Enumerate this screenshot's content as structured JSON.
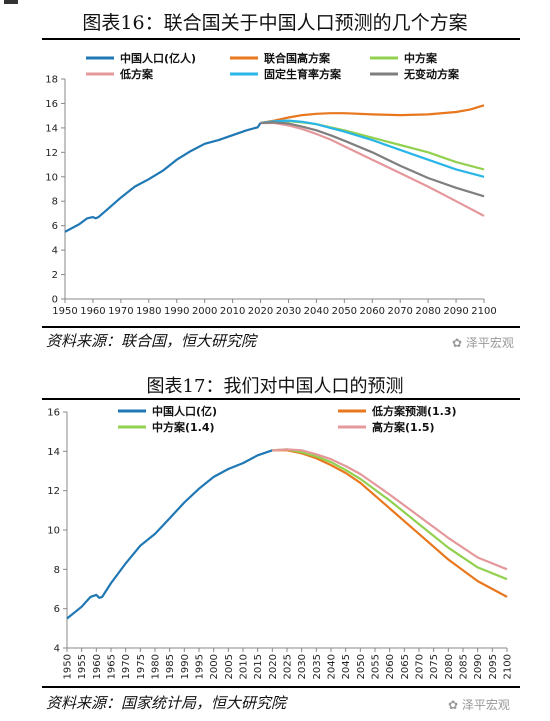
{
  "chart_data": [
    {
      "type": "line",
      "title": "图表16：联合国关于中国人口预测的几个方案",
      "xlim": [
        1950,
        2100
      ],
      "ylim": [
        0,
        18
      ],
      "xticks": [
        1950,
        1960,
        1970,
        1980,
        1990,
        2000,
        2010,
        2020,
        2030,
        2040,
        2050,
        2060,
        2070,
        2080,
        2090,
        2100
      ],
      "yticks": [
        0,
        2,
        4,
        6,
        8,
        10,
        12,
        14,
        16,
        18
      ],
      "grid": false,
      "legend_position": "top",
      "series": [
        {
          "name": "中国人口(亿人)",
          "color": "#1f77b4",
          "x": [
            1950,
            1955,
            1958,
            1960,
            1961,
            1962,
            1965,
            1970,
            1975,
            1980,
            1985,
            1990,
            1995,
            2000,
            2005,
            2010,
            2015,
            2019,
            2020
          ],
          "y": [
            5.5,
            6.1,
            6.6,
            6.7,
            6.6,
            6.7,
            7.3,
            8.3,
            9.2,
            9.8,
            10.5,
            11.4,
            12.1,
            12.7,
            13.0,
            13.4,
            13.8,
            14.05,
            14.4
          ]
        },
        {
          "name": "联合国高方案",
          "color": "#e8771e",
          "x": [
            2020,
            2025,
            2030,
            2035,
            2040,
            2045,
            2050,
            2060,
            2070,
            2080,
            2090,
            2095,
            2100
          ],
          "y": [
            14.4,
            14.6,
            14.85,
            15.05,
            15.15,
            15.2,
            15.2,
            15.1,
            15.05,
            15.1,
            15.3,
            15.5,
            15.85
          ]
        },
        {
          "name": "中方案",
          "color": "#92d050",
          "x": [
            2020,
            2025,
            2030,
            2035,
            2040,
            2045,
            2050,
            2060,
            2070,
            2080,
            2090,
            2100
          ],
          "y": [
            14.4,
            14.5,
            14.55,
            14.45,
            14.3,
            14.05,
            13.8,
            13.2,
            12.6,
            12.0,
            11.2,
            10.6
          ]
        },
        {
          "name": "低方案",
          "color": "#e5989b",
          "x": [
            2020,
            2025,
            2030,
            2035,
            2040,
            2045,
            2050,
            2060,
            2070,
            2080,
            2090,
            2100
          ],
          "y": [
            14.4,
            14.4,
            14.2,
            13.9,
            13.5,
            13.05,
            12.5,
            11.4,
            10.3,
            9.2,
            8.0,
            6.8
          ]
        },
        {
          "name": "固定生育率方案",
          "color": "#29b5e8",
          "x": [
            2020,
            2025,
            2030,
            2035,
            2040,
            2045,
            2050,
            2060,
            2070,
            2080,
            2090,
            2100
          ],
          "y": [
            14.4,
            14.55,
            14.6,
            14.5,
            14.3,
            14.0,
            13.7,
            13.0,
            12.2,
            11.4,
            10.6,
            10.0
          ]
        },
        {
          "name": "无变动方案",
          "color": "#7f7f7f",
          "x": [
            2020,
            2025,
            2030,
            2035,
            2040,
            2045,
            2050,
            2060,
            2070,
            2080,
            2090,
            2100
          ],
          "y": [
            14.4,
            14.45,
            14.35,
            14.1,
            13.8,
            13.4,
            12.95,
            12.0,
            10.9,
            9.9,
            9.1,
            8.4
          ]
        }
      ]
    },
    {
      "type": "line",
      "title": "图表17：我们对中国人口的预测",
      "xlim": [
        1950,
        2100
      ],
      "ylim": [
        4,
        16
      ],
      "xticks": [
        1950,
        1955,
        1960,
        1965,
        1970,
        1975,
        1980,
        1985,
        1990,
        1995,
        2000,
        2005,
        2010,
        2015,
        2020,
        2025,
        2030,
        2035,
        2040,
        2045,
        2050,
        2055,
        2060,
        2065,
        2070,
        2075,
        2080,
        2085,
        2090,
        2095,
        2100
      ],
      "yticks": [
        4,
        6,
        8,
        10,
        12,
        14,
        16
      ],
      "grid": false,
      "legend_position": "top",
      "series": [
        {
          "name": "中国人口(亿)",
          "color": "#1f77b4",
          "x": [
            1950,
            1955,
            1958,
            1960,
            1961,
            1962,
            1965,
            1970,
            1975,
            1980,
            1985,
            1990,
            1995,
            2000,
            2005,
            2010,
            2015,
            2020
          ],
          "y": [
            5.5,
            6.1,
            6.6,
            6.7,
            6.55,
            6.6,
            7.3,
            8.3,
            9.2,
            9.8,
            10.6,
            11.4,
            12.1,
            12.7,
            13.1,
            13.4,
            13.8,
            14.05
          ]
        },
        {
          "name": "低方案预测(1.3)",
          "color": "#e8771e",
          "x": [
            2020,
            2025,
            2030,
            2035,
            2040,
            2045,
            2050,
            2060,
            2070,
            2080,
            2090,
            2100
          ],
          "y": [
            14.05,
            14.05,
            13.9,
            13.65,
            13.3,
            12.9,
            12.4,
            11.1,
            9.8,
            8.5,
            7.4,
            6.6
          ]
        },
        {
          "name": "中方案(1.4)",
          "color": "#92d050",
          "x": [
            2020,
            2025,
            2030,
            2035,
            2040,
            2045,
            2050,
            2060,
            2070,
            2080,
            2090,
            2100
          ],
          "y": [
            14.05,
            14.1,
            13.95,
            13.75,
            13.45,
            13.05,
            12.6,
            11.5,
            10.3,
            9.1,
            8.1,
            7.5
          ]
        },
        {
          "name": "高方案(1.5)",
          "color": "#e5989b",
          "x": [
            2020,
            2025,
            2030,
            2035,
            2040,
            2045,
            2050,
            2060,
            2070,
            2080,
            2090,
            2100
          ],
          "y": [
            14.05,
            14.1,
            14.05,
            13.85,
            13.6,
            13.25,
            12.85,
            11.8,
            10.7,
            9.6,
            8.6,
            8.0
          ]
        }
      ]
    }
  ],
  "source1": "资料来源：联合国，恒大研究院",
  "source2": "资料来源：国家统计局，恒大研究院",
  "watermark": "泽平宏观"
}
